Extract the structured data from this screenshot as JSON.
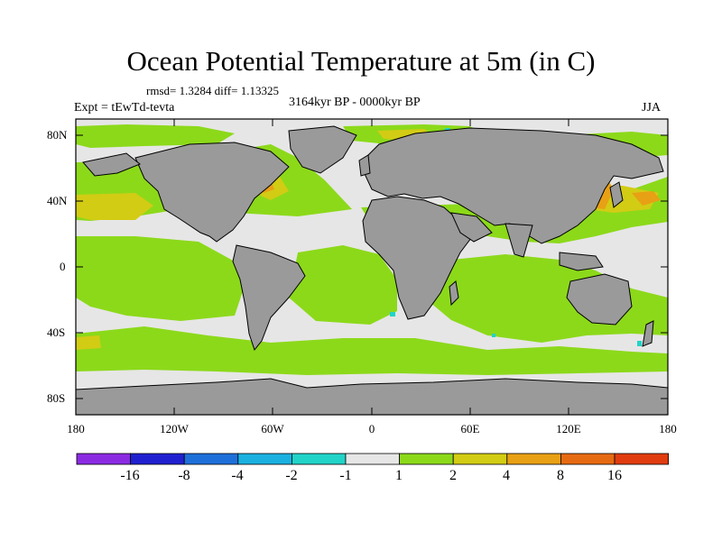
{
  "title": "Ocean Potential Temperature at 5m (in C)",
  "stats": "rmsd= 1.3284 diff= 1.13325",
  "experiment": "Expt = tEwTd-tevta",
  "period": "3164kyr BP - 0000kyr BP",
  "season": "JJA",
  "lat_labels": [
    "80N",
    "40N",
    "0",
    "40S",
    "80S"
  ],
  "lon_labels": [
    "180",
    "120W",
    "60W",
    "0",
    "60E",
    "120E",
    "180"
  ],
  "colorbar": {
    "colors": [
      "#8a2be2",
      "#2020d0",
      "#1e6fd9",
      "#1ab0e0",
      "#22d3c8",
      "#e6e6e6",
      "#8cd91a",
      "#d2cc14",
      "#e8a014",
      "#e66a12",
      "#e03c10"
    ],
    "labels": [
      "-16",
      "-8",
      "-4",
      "-2",
      "-1",
      "1",
      "2",
      "4",
      "8",
      "16"
    ]
  },
  "palette": {
    "land": "#9a9a9a",
    "neutral": "#e6e6e6",
    "green": "#8cd91a",
    "yellow": "#d2cc14",
    "orange": "#e8a014",
    "cyan": "#22d3c8"
  }
}
